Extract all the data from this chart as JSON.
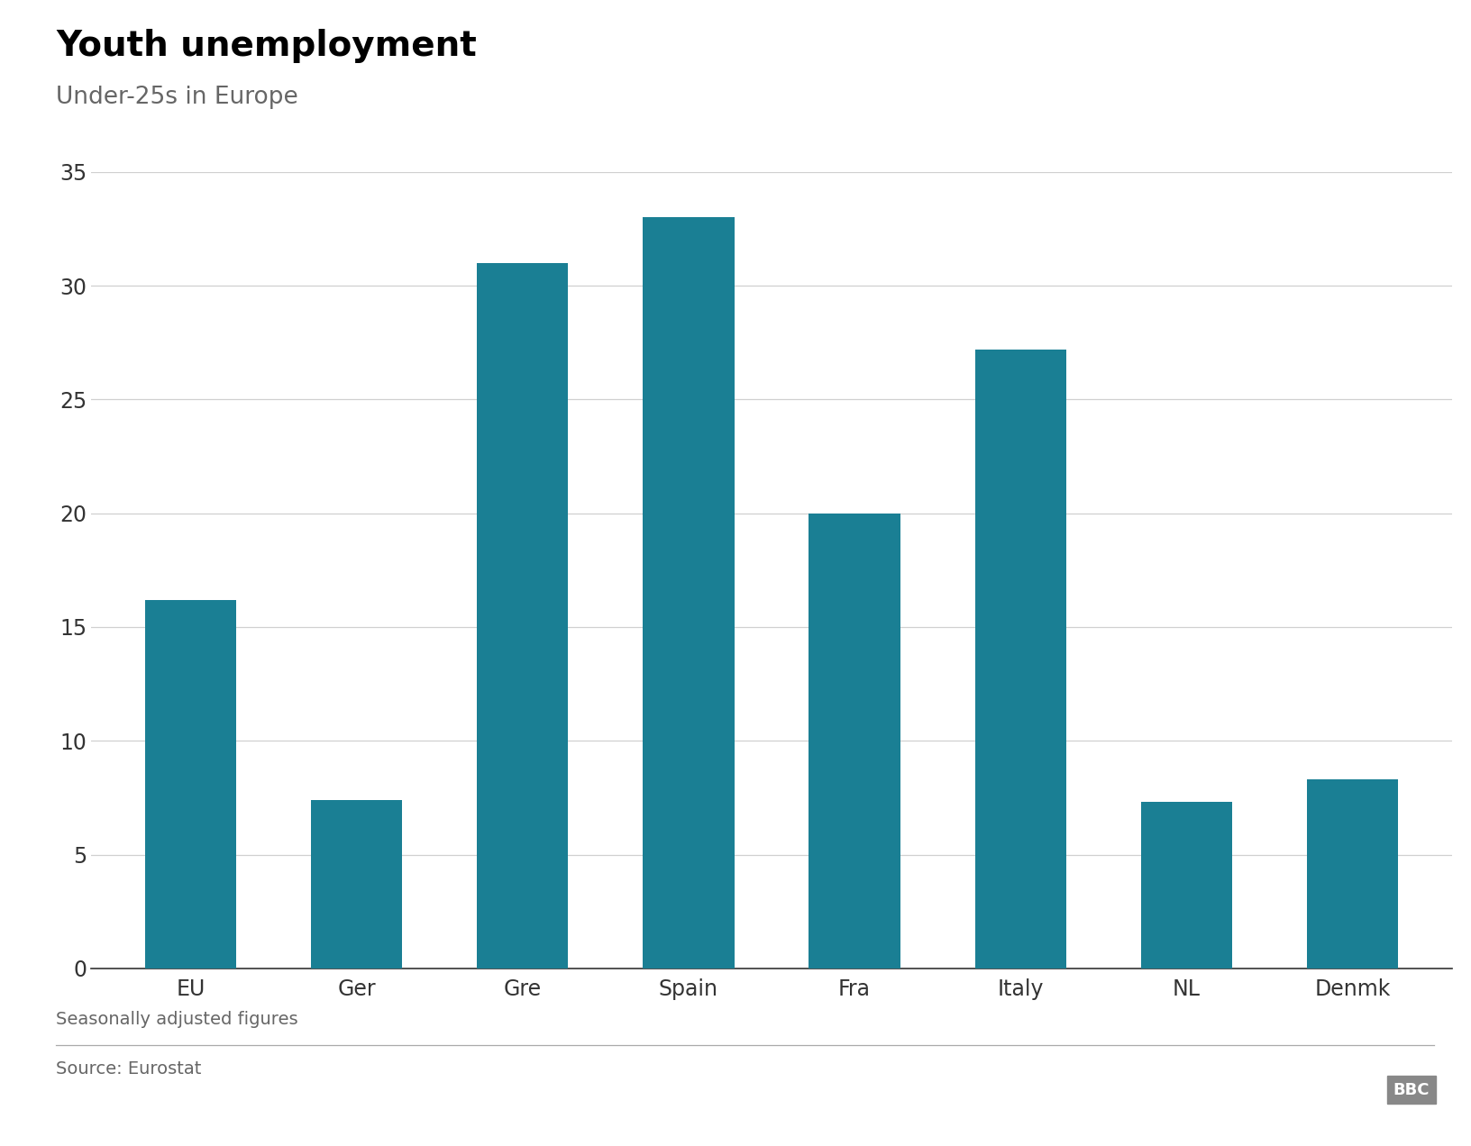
{
  "title": "Youth unemployment",
  "subtitle": "Under-25s in Europe",
  "categories": [
    "EU",
    "Ger",
    "Gre",
    "Spain",
    "Fra",
    "Italy",
    "NL",
    "Denmk"
  ],
  "values": [
    16.2,
    7.4,
    31.0,
    33.0,
    20.0,
    27.2,
    7.3,
    8.3
  ],
  "bar_color": "#1a7f94",
  "ylim": [
    0,
    35
  ],
  "yticks": [
    0,
    5,
    10,
    15,
    20,
    25,
    30,
    35
  ],
  "footnote": "Seasonally adjusted figures",
  "source": "Source: Eurostat",
  "bbc_label": "BBC",
  "background_color": "#ffffff",
  "title_fontsize": 28,
  "subtitle_fontsize": 19,
  "tick_fontsize": 17,
  "footnote_fontsize": 14,
  "source_fontsize": 14
}
